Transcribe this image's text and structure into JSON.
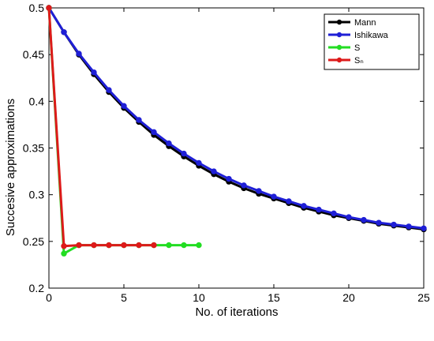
{
  "chart_data": {
    "type": "line",
    "xlabel": "No. of iterations",
    "ylabel": "Succesive approximations",
    "xlim": [
      0,
      25
    ],
    "ylim": [
      0.2,
      0.5
    ],
    "xticks": [
      "0",
      "5",
      "10",
      "15",
      "20",
      "25"
    ],
    "yticks": [
      "0.2",
      "0.25",
      "0.3",
      "0.35",
      "0.4",
      "0.45",
      "0.5"
    ],
    "grid": false,
    "legend_position": "top-right",
    "series": [
      {
        "name": "Mann",
        "color": "#000000",
        "x": [
          0,
          1,
          2,
          3,
          4,
          5,
          6,
          7,
          8,
          9,
          10,
          11,
          12,
          13,
          14,
          15,
          16,
          17,
          18,
          19,
          20,
          21,
          22,
          23,
          24,
          25
        ],
        "y": [
          0.5,
          0.474,
          0.45,
          0.429,
          0.41,
          0.393,
          0.378,
          0.364,
          0.352,
          0.341,
          0.331,
          0.322,
          0.314,
          0.307,
          0.301,
          0.296,
          0.291,
          0.286,
          0.282,
          0.278,
          0.275,
          0.272,
          0.269,
          0.267,
          0.265,
          0.263
        ]
      },
      {
        "name": "Ishikawa",
        "color": "#1f1fd6",
        "x": [
          0,
          1,
          2,
          3,
          4,
          5,
          6,
          7,
          8,
          9,
          10,
          11,
          12,
          13,
          14,
          15,
          16,
          17,
          18,
          19,
          20,
          21,
          22,
          23,
          24,
          25
        ],
        "y": [
          0.5,
          0.474,
          0.451,
          0.431,
          0.412,
          0.395,
          0.38,
          0.367,
          0.355,
          0.344,
          0.334,
          0.325,
          0.317,
          0.31,
          0.304,
          0.298,
          0.293,
          0.288,
          0.284,
          0.28,
          0.276,
          0.273,
          0.27,
          0.268,
          0.266,
          0.264
        ]
      },
      {
        "name": "S",
        "color": "#22dd22",
        "x": [
          0,
          1,
          2,
          3,
          4,
          5,
          6,
          7,
          8,
          9,
          10
        ],
        "y": [
          0.5,
          0.237,
          0.246,
          0.246,
          0.246,
          0.246,
          0.246,
          0.246,
          0.246,
          0.246,
          0.246
        ]
      },
      {
        "name": "Sₙ",
        "color": "#dd1a1a",
        "x": [
          0,
          1,
          2,
          3,
          4,
          5,
          6,
          7
        ],
        "y": [
          0.5,
          0.245,
          0.246,
          0.246,
          0.246,
          0.246,
          0.246,
          0.246
        ]
      }
    ]
  }
}
